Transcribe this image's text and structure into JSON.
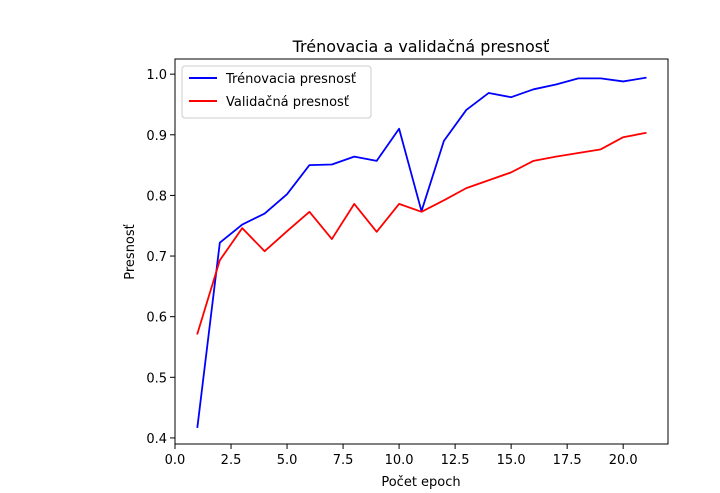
{
  "chart_data": {
    "type": "line",
    "title": "Trénovacia a validačná presnosť",
    "xlabel": "Počet epoch",
    "ylabel": "Presnosť",
    "xlim": [
      0,
      22
    ],
    "ylim": [
      0.39,
      1.025
    ],
    "xticks": [
      "0.0",
      "2.5",
      "5.0",
      "7.5",
      "10.0",
      "12.5",
      "15.0",
      "17.5",
      "20.0"
    ],
    "yticks": [
      "0.4",
      "0.5",
      "0.6",
      "0.7",
      "0.8",
      "0.9",
      "1.0"
    ],
    "legend_position": "top-left",
    "grid": false,
    "x": [
      1,
      2,
      3,
      4,
      5,
      6,
      7,
      8,
      9,
      10,
      11,
      12,
      13,
      14,
      15,
      16,
      17,
      18,
      19,
      20,
      21
    ],
    "series": [
      {
        "name": "Trénovacia presnosť",
        "color": "#0000ff",
        "values": [
          0.418,
          0.722,
          0.752,
          0.77,
          0.802,
          0.85,
          0.851,
          0.864,
          0.857,
          0.91,
          0.774,
          0.89,
          0.941,
          0.969,
          0.962,
          0.975,
          0.983,
          0.993,
          0.993,
          0.988,
          0.994
        ]
      },
      {
        "name": "Validačná presnosť",
        "color": "#ff0000",
        "values": [
          0.572,
          0.693,
          0.746,
          0.708,
          0.741,
          0.773,
          0.728,
          0.786,
          0.74,
          0.786,
          0.773,
          0.792,
          0.812,
          0.825,
          0.838,
          0.857,
          0.864,
          0.87,
          0.876,
          0.896,
          0.903
        ]
      }
    ]
  }
}
